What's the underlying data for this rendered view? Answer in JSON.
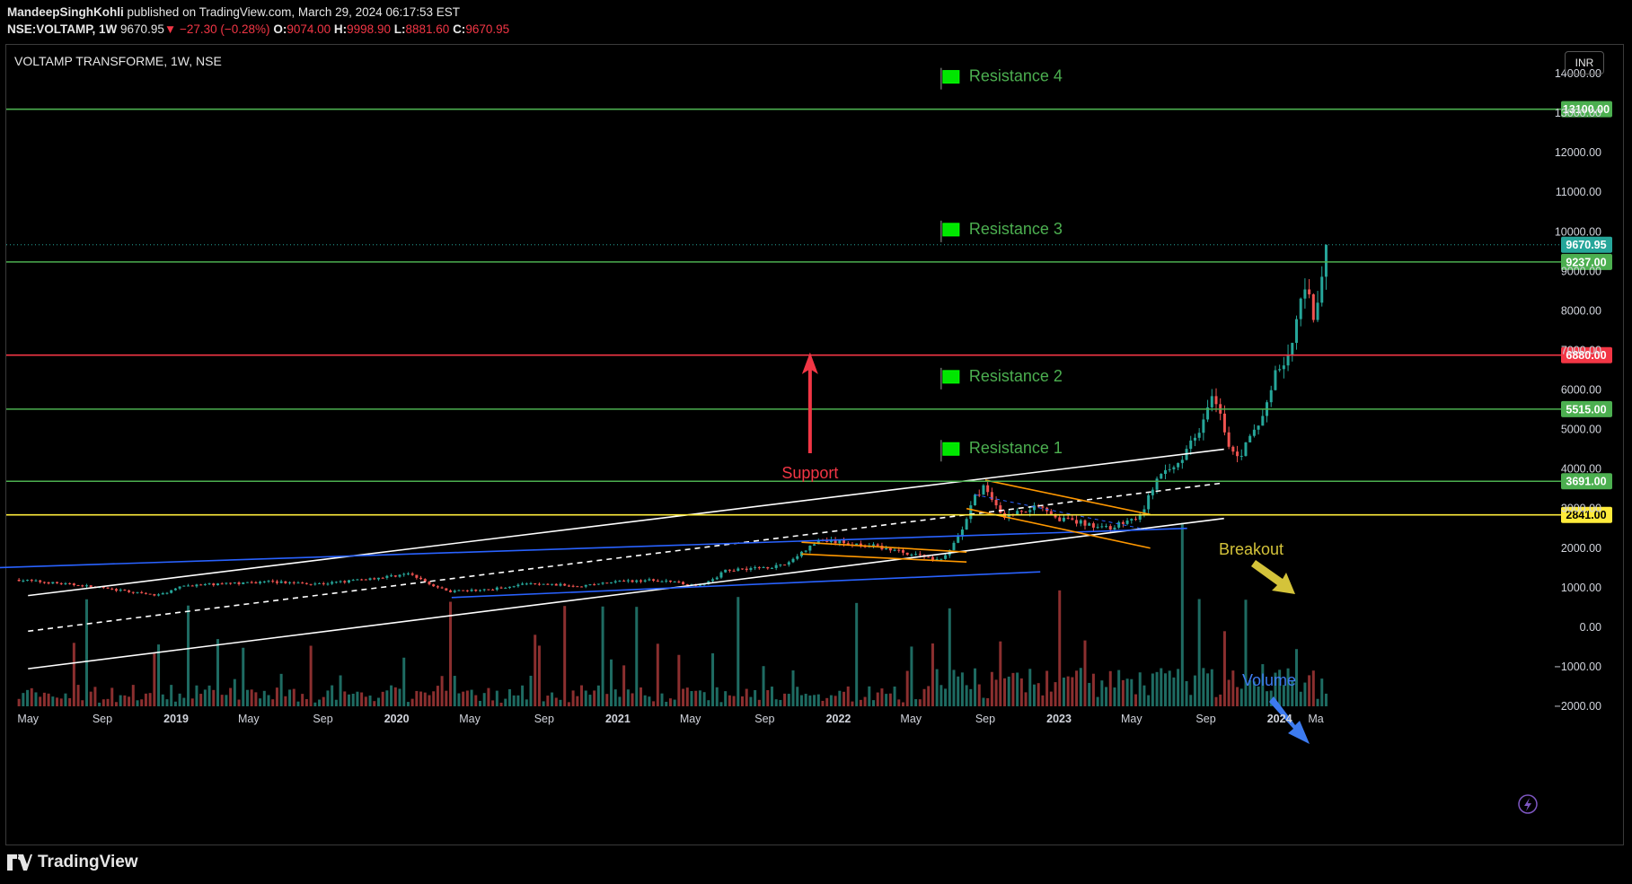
{
  "header": {
    "author": "MandeepSinghKohli",
    "published": "published on TradingView.com, March 29, 2024 06:17:53 EST",
    "symbol_line": "NSE:VOLTAMP, 1W",
    "last": "9670.95",
    "change": "−27.30 (−0.28%)",
    "open_label": "O:",
    "open": "9074.00",
    "high_label": "H:",
    "high": "9998.90",
    "low_label": "L:",
    "low": "8881.60",
    "close_label": "C:",
    "close": "9670.95"
  },
  "chart_title": "VOLTAMP TRANSFORME, 1W, NSE",
  "currency": "INR",
  "footer": {
    "brand": "TradingView"
  },
  "colors": {
    "green_level": "#4caf50",
    "red_level": "#f23645",
    "yellow_level": "#ffeb3b",
    "up": "#26a69a",
    "down": "#ef5350",
    "blue_line": "#2962ff",
    "orange_line": "#ff9800",
    "flag": "#00e600",
    "label_green": "#4caf50",
    "support_red": "#f23645",
    "breakout_yellow": "#d4c33a",
    "volume_blue": "#3d7bf0"
  },
  "chart_data": {
    "type": "candlestick",
    "interval": "1W",
    "x_range": [
      "2018-04",
      "2024-03"
    ],
    "y_range": [
      -2000,
      14000
    ],
    "x_tick_labels": [
      "May",
      "Sep",
      "2019",
      "May",
      "Sep",
      "2020",
      "May",
      "Sep",
      "2021",
      "May",
      "Sep",
      "2022",
      "May",
      "Sep",
      "2023",
      "May",
      "Sep",
      "2024",
      "Ma"
    ],
    "x_tick_dates": [
      "2018-05-01",
      "2018-09-01",
      "2019-01-01",
      "2019-05-01",
      "2019-09-01",
      "2020-01-01",
      "2020-05-01",
      "2020-09-01",
      "2021-01-01",
      "2021-05-01",
      "2021-09-01",
      "2022-01-01",
      "2022-05-01",
      "2022-09-01",
      "2023-01-01",
      "2023-05-01",
      "2023-09-01",
      "2024-01-01",
      "2024-03-01"
    ],
    "y_tick_labels": [
      "14000.00",
      "13000.00",
      "12000.00",
      "11000.00",
      "10000.00",
      "9000.00",
      "8000.00",
      "7000.00",
      "6000.00",
      "5000.00",
      "4000.00",
      "3000.00",
      "2000.00",
      "1000.00",
      "0.00",
      "−1000.00",
      "−2000.00"
    ],
    "y_tick_values": [
      14000,
      13000,
      12000,
      11000,
      10000,
      9000,
      8000,
      7000,
      6000,
      5000,
      4000,
      3000,
      2000,
      1000,
      0,
      -1000,
      -2000
    ],
    "price_path": [
      [
        "2018-04-15",
        1200
      ],
      [
        "2018-08-01",
        1050
      ],
      [
        "2018-12-01",
        800
      ],
      [
        "2019-01-15",
        1050
      ],
      [
        "2019-06-01",
        1150
      ],
      [
        "2019-09-01",
        1100
      ],
      [
        "2019-12-01",
        1250
      ],
      [
        "2020-01-20",
        1350
      ],
      [
        "2020-03-25",
        900
      ],
      [
        "2020-06-01",
        950
      ],
      [
        "2020-08-01",
        1100
      ],
      [
        "2020-11-01",
        1050
      ],
      [
        "2021-01-01",
        1150
      ],
      [
        "2021-03-01",
        1200
      ],
      [
        "2021-05-20",
        1050
      ],
      [
        "2021-07-01",
        1450
      ],
      [
        "2021-10-01",
        1550
      ],
      [
        "2021-12-01",
        2200
      ],
      [
        "2022-03-01",
        2050
      ],
      [
        "2022-06-20",
        1700
      ],
      [
        "2022-07-20",
        2300
      ],
      [
        "2022-08-15",
        3300
      ],
      [
        "2022-09-01",
        3550
      ],
      [
        "2022-10-01",
        2800
      ],
      [
        "2022-12-01",
        3100
      ],
      [
        "2023-01-01",
        2750
      ],
      [
        "2023-03-25",
        2500
      ],
      [
        "2023-05-15",
        2800
      ],
      [
        "2023-06-10",
        3700
      ],
      [
        "2023-07-15",
        4100
      ],
      [
        "2023-08-20",
        5000
      ],
      [
        "2023-09-15",
        5900
      ],
      [
        "2023-10-10",
        4600
      ],
      [
        "2023-10-25",
        4300
      ],
      [
        "2023-12-01",
        5200
      ],
      [
        "2023-12-25",
        6400
      ],
      [
        "2024-01-20",
        7000
      ],
      [
        "2024-02-05",
        8200
      ],
      [
        "2024-02-15",
        8700
      ],
      [
        "2024-02-28",
        7500
      ],
      [
        "2024-03-10",
        8900
      ],
      [
        "2024-03-22",
        9670.95
      ]
    ],
    "last_close": 9670.95,
    "horizontal_levels": [
      {
        "name": "Resistance 4",
        "value": 13100,
        "label": "13100.00",
        "color": "#4caf50"
      },
      {
        "name": "Resistance 3",
        "value": 9237,
        "label": "9237.00",
        "color": "#4caf50"
      },
      {
        "name": "Support",
        "value": 6880,
        "label": "6880.00",
        "color": "#f23645"
      },
      {
        "name": "Resistance 2",
        "value": 5515,
        "label": "5515.00",
        "color": "#4caf50"
      },
      {
        "name": "Resistance 1",
        "value": 3691,
        "label": "3691.00",
        "color": "#4caf50"
      },
      {
        "name": "Breakout",
        "value": 2841,
        "label": "2841.00",
        "color": "#ffeb3b"
      }
    ],
    "last_price_label": "9670.95",
    "annotations": [
      {
        "text": "Resistance 4",
        "color": "#4caf50",
        "flag": true
      },
      {
        "text": "Resistance 3",
        "color": "#4caf50",
        "flag": true
      },
      {
        "text": "Resistance 2",
        "color": "#4caf50",
        "flag": true
      },
      {
        "text": "Resistance 1",
        "color": "#4caf50",
        "flag": true
      },
      {
        "text": "Support",
        "color": "#f23645"
      },
      {
        "text": "Breakout",
        "color": "#d4c33a"
      },
      {
        "text": "Volume",
        "color": "#3d7bf0"
      }
    ],
    "trendlines": [
      {
        "name": "upper-channel",
        "color": "#ffffff",
        "points": [
          [
            "2018-05-01",
            800
          ],
          [
            "2023-10-01",
            4500
          ]
        ]
      },
      {
        "name": "mid-channel",
        "color": "#ffffff",
        "style": "dashed",
        "points": [
          [
            "2018-05-01",
            -100
          ],
          [
            "2023-10-01",
            3650
          ]
        ]
      },
      {
        "name": "lower-channel",
        "color": "#ffffff",
        "points": [
          [
            "2018-05-01",
            -1050
          ],
          [
            "2023-10-01",
            2750
          ]
        ]
      },
      {
        "name": "blue-support-1",
        "color": "#2962ff",
        "points": [
          [
            "2018-03-01",
            1500
          ],
          [
            "2023-08-01",
            2500
          ]
        ]
      },
      {
        "name": "blue-support-2",
        "color": "#2962ff",
        "points": [
          [
            "2020-04-01",
            750
          ],
          [
            "2022-12-01",
            1400
          ]
        ]
      }
    ],
    "grid": false,
    "legend": "none"
  }
}
